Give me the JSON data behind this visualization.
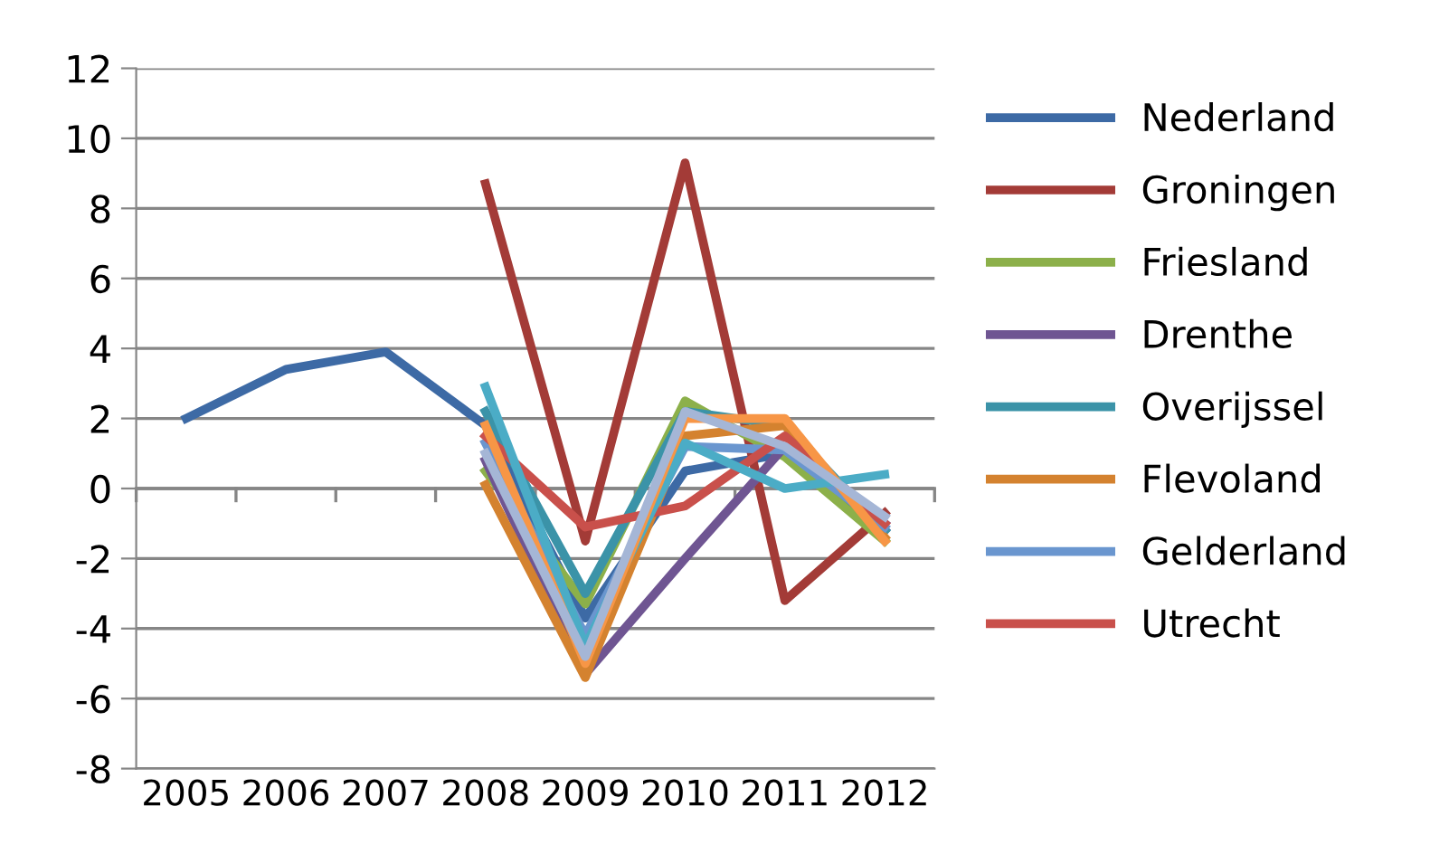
{
  "chart_data": {
    "type": "line",
    "categories": [
      "2005",
      "2006",
      "2007",
      "2008",
      "2009",
      "2010",
      "2011",
      "2012"
    ],
    "ylim": [
      -8,
      12
    ],
    "yticks": [
      -8,
      -6,
      -4,
      -2,
      0,
      2,
      4,
      6,
      8,
      10,
      12
    ],
    "grid": "y",
    "legend": "right",
    "marker": "none",
    "line_style": "solid",
    "series": [
      {
        "name": "Nederland",
        "color": "#3d6aa5",
        "values": [
          2.0,
          3.4,
          3.9,
          1.8,
          -3.7,
          0.5,
          1.0,
          -1.2
        ]
      },
      {
        "name": "Groningen",
        "color": "#a33b37",
        "values": [
          null,
          null,
          null,
          8.7,
          -1.5,
          9.3,
          -3.2,
          -0.7
        ]
      },
      {
        "name": "Friesland",
        "color": "#8cb04a",
        "values": [
          null,
          null,
          null,
          0.5,
          -3.3,
          2.5,
          0.9,
          -1.5
        ]
      },
      {
        "name": "Drenthe",
        "color": "#6f5592",
        "values": [
          null,
          null,
          null,
          0.8,
          -5.3,
          -2.0,
          1.2,
          -1.0
        ]
      },
      {
        "name": "Overijssel",
        "color": "#3b93a8",
        "values": [
          null,
          null,
          null,
          2.2,
          -3.0,
          2.2,
          1.8,
          -1.2
        ]
      },
      {
        "name": "Flevoland",
        "color": "#d4822f",
        "values": [
          null,
          null,
          null,
          0.1,
          -5.4,
          1.5,
          1.8,
          -1.4
        ]
      },
      {
        "name": "Gelderland",
        "color": "#6a96cf",
        "values": [
          null,
          null,
          null,
          1.3,
          -4.2,
          1.2,
          1.1,
          -1.1
        ]
      },
      {
        "name": "Utrecht",
        "color": "#c9504b",
        "values": [
          null,
          null,
          null,
          1.5,
          -1.1,
          -0.5,
          1.5,
          -1.0
        ]
      },
      {
        "color": "#4bacc6",
        "values": [
          null,
          null,
          null,
          2.9,
          -4.5,
          1.3,
          0.0,
          0.4
        ]
      },
      {
        "color": "#f79646",
        "values": [
          null,
          null,
          null,
          1.8,
          -5.0,
          2.0,
          2.0,
          -1.5
        ]
      },
      {
        "color": "#a5b6d6",
        "values": [
          null,
          null,
          null,
          1.0,
          -4.8,
          2.2,
          1.2,
          -0.8
        ]
      }
    ]
  }
}
